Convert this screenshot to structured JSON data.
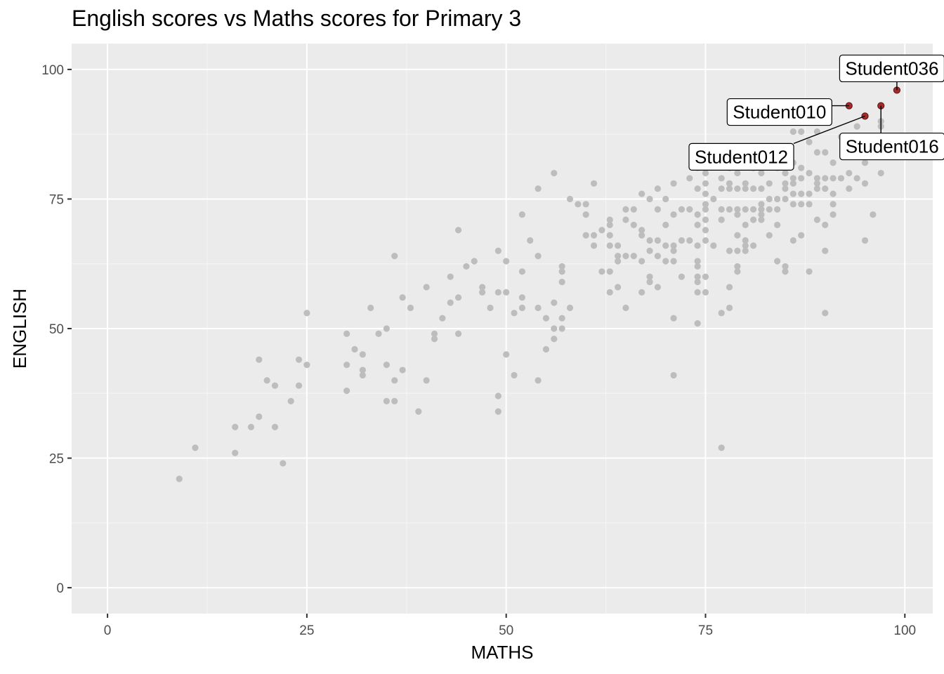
{
  "chart_data": {
    "type": "scatter",
    "title": "English scores vs Maths scores for Primary 3",
    "xlabel": "MATHS",
    "ylabel": "ENGLISH",
    "xlim": [
      -4.5,
      103.5
    ],
    "ylim": [
      -5,
      105
    ],
    "xticks": [
      0,
      25,
      50,
      75,
      100
    ],
    "yticks": [
      0,
      25,
      50,
      75,
      100
    ],
    "grid": true,
    "legend": "none",
    "colors": {
      "panel": "#ebebeb",
      "grid_major": "#ffffff",
      "grid_minor": "#f5f5f5",
      "point": "#bdbdbd",
      "highlight": "#a52a2a",
      "highlight_edge": "#5a1414"
    },
    "series": [
      {
        "role": "all students",
        "points": [
          [
            9,
            21
          ],
          [
            11,
            27
          ],
          [
            16,
            31
          ],
          [
            16,
            26
          ],
          [
            18,
            31
          ],
          [
            19,
            44
          ],
          [
            19,
            33
          ],
          [
            20,
            40
          ],
          [
            21,
            39
          ],
          [
            21,
            31
          ],
          [
            22,
            24
          ],
          [
            23,
            36
          ],
          [
            24,
            44
          ],
          [
            24,
            39
          ],
          [
            25,
            53
          ],
          [
            25,
            43
          ],
          [
            30,
            49
          ],
          [
            30,
            43
          ],
          [
            30,
            38
          ],
          [
            31,
            46
          ],
          [
            32,
            45
          ],
          [
            32,
            42
          ],
          [
            32,
            41
          ],
          [
            33,
            54
          ],
          [
            34,
            49
          ],
          [
            35,
            50
          ],
          [
            35,
            43
          ],
          [
            35,
            36
          ],
          [
            36,
            64
          ],
          [
            36,
            40
          ],
          [
            36,
            36
          ],
          [
            37,
            56
          ],
          [
            37,
            42
          ],
          [
            38,
            54
          ],
          [
            39,
            34
          ],
          [
            40,
            58
          ],
          [
            40,
            40
          ],
          [
            41,
            49
          ],
          [
            41,
            48
          ],
          [
            42,
            52
          ],
          [
            43,
            60
          ],
          [
            43,
            55
          ],
          [
            44,
            69
          ],
          [
            44,
            56
          ],
          [
            44,
            49
          ],
          [
            45,
            62
          ],
          [
            46,
            63
          ],
          [
            47,
            58
          ],
          [
            47,
            57
          ],
          [
            48,
            54
          ],
          [
            49,
            65
          ],
          [
            49,
            57
          ],
          [
            49,
            37
          ],
          [
            49,
            34
          ],
          [
            50,
            63
          ],
          [
            50,
            57
          ],
          [
            50,
            45
          ],
          [
            51,
            53
          ],
          [
            51,
            41
          ],
          [
            52,
            72
          ],
          [
            52,
            61
          ],
          [
            52,
            56
          ],
          [
            52,
            54
          ],
          [
            53,
            67
          ],
          [
            54,
            77
          ],
          [
            54,
            64
          ],
          [
            54,
            54
          ],
          [
            54,
            40
          ],
          [
            55,
            52
          ],
          [
            55,
            46
          ],
          [
            56,
            80
          ],
          [
            56,
            55
          ],
          [
            56,
            50
          ],
          [
            56,
            48
          ],
          [
            57,
            62
          ],
          [
            57,
            61
          ],
          [
            57,
            59
          ],
          [
            57,
            52
          ],
          [
            57,
            50
          ],
          [
            58,
            75
          ],
          [
            58,
            54
          ],
          [
            59,
            74
          ],
          [
            60,
            74
          ],
          [
            60,
            72
          ],
          [
            60,
            68
          ],
          [
            61,
            78
          ],
          [
            61,
            68
          ],
          [
            61,
            66
          ],
          [
            62,
            69
          ],
          [
            62,
            61
          ],
          [
            63,
            71
          ],
          [
            63,
            70
          ],
          [
            63,
            68
          ],
          [
            63,
            66
          ],
          [
            63,
            61
          ],
          [
            63,
            57
          ],
          [
            64,
            66
          ],
          [
            64,
            64
          ],
          [
            64,
            63
          ],
          [
            64,
            58
          ],
          [
            65,
            73
          ],
          [
            65,
            71
          ],
          [
            65,
            64
          ],
          [
            65,
            54
          ],
          [
            66,
            73
          ],
          [
            66,
            70
          ],
          [
            66,
            64
          ],
          [
            67,
            76
          ],
          [
            67,
            69
          ],
          [
            67,
            68
          ],
          [
            67,
            63
          ],
          [
            67,
            57
          ],
          [
            68,
            75
          ],
          [
            68,
            67
          ],
          [
            68,
            65
          ],
          [
            68,
            60
          ],
          [
            68,
            59
          ],
          [
            69,
            77
          ],
          [
            69,
            73
          ],
          [
            69,
            67
          ],
          [
            69,
            64
          ],
          [
            69,
            58
          ],
          [
            70,
            75
          ],
          [
            70,
            70
          ],
          [
            70,
            66
          ],
          [
            70,
            63
          ],
          [
            71,
            78
          ],
          [
            71,
            72
          ],
          [
            71,
            66
          ],
          [
            71,
            65
          ],
          [
            71,
            63
          ],
          [
            71,
            52
          ],
          [
            71,
            41
          ],
          [
            72,
            73
          ],
          [
            72,
            67
          ],
          [
            72,
            60
          ],
          [
            73,
            79
          ],
          [
            73,
            73
          ],
          [
            73,
            67
          ],
          [
            74,
            81
          ],
          [
            74,
            77
          ],
          [
            74,
            72
          ],
          [
            74,
            70
          ],
          [
            74,
            66
          ],
          [
            74,
            63
          ],
          [
            74,
            62
          ],
          [
            74,
            60
          ],
          [
            74,
            59
          ],
          [
            74,
            57
          ],
          [
            74,
            51
          ],
          [
            75,
            80
          ],
          [
            75,
            78
          ],
          [
            75,
            76
          ],
          [
            75,
            74
          ],
          [
            75,
            73
          ],
          [
            75,
            71
          ],
          [
            75,
            69
          ],
          [
            75,
            67
          ],
          [
            75,
            60
          ],
          [
            75,
            57
          ],
          [
            76,
            82
          ],
          [
            76,
            75
          ],
          [
            76,
            66
          ],
          [
            77,
            79
          ],
          [
            77,
            77
          ],
          [
            77,
            73
          ],
          [
            77,
            71
          ],
          [
            77,
            53
          ],
          [
            77,
            27
          ],
          [
            78,
            81
          ],
          [
            78,
            78
          ],
          [
            78,
            77
          ],
          [
            78,
            73
          ],
          [
            78,
            65
          ],
          [
            78,
            58
          ],
          [
            78,
            54
          ],
          [
            79,
            80
          ],
          [
            79,
            77
          ],
          [
            79,
            73
          ],
          [
            79,
            72
          ],
          [
            79,
            68
          ],
          [
            79,
            65
          ],
          [
            79,
            62
          ],
          [
            79,
            61
          ],
          [
            80,
            82
          ],
          [
            80,
            78
          ],
          [
            80,
            77
          ],
          [
            80,
            73
          ],
          [
            80,
            70
          ],
          [
            80,
            67
          ],
          [
            80,
            66
          ],
          [
            80,
            65
          ],
          [
            81,
            81
          ],
          [
            81,
            77
          ],
          [
            81,
            73
          ],
          [
            81,
            71
          ],
          [
            81,
            66
          ],
          [
            82,
            80
          ],
          [
            82,
            77
          ],
          [
            82,
            74
          ],
          [
            82,
            73
          ],
          [
            82,
            72
          ],
          [
            82,
            71
          ],
          [
            83,
            78
          ],
          [
            83,
            75
          ],
          [
            83,
            73
          ],
          [
            83,
            68
          ],
          [
            84,
            81
          ],
          [
            84,
            75
          ],
          [
            84,
            73
          ],
          [
            84,
            70
          ],
          [
            84,
            63
          ],
          [
            85,
            80
          ],
          [
            85,
            78
          ],
          [
            85,
            77
          ],
          [
            85,
            75
          ],
          [
            85,
            62
          ],
          [
            85,
            61
          ],
          [
            86,
            88
          ],
          [
            86,
            82
          ],
          [
            86,
            79
          ],
          [
            86,
            78
          ],
          [
            86,
            76
          ],
          [
            86,
            74
          ],
          [
            86,
            67
          ],
          [
            87,
            88
          ],
          [
            87,
            81
          ],
          [
            87,
            79
          ],
          [
            87,
            76
          ],
          [
            87,
            74
          ],
          [
            87,
            68
          ],
          [
            88,
            86
          ],
          [
            88,
            80
          ],
          [
            88,
            76
          ],
          [
            88,
            74
          ],
          [
            88,
            61
          ],
          [
            89,
            88
          ],
          [
            89,
            84
          ],
          [
            89,
            79
          ],
          [
            89,
            78
          ],
          [
            89,
            77
          ],
          [
            89,
            71
          ],
          [
            90,
            84
          ],
          [
            90,
            79
          ],
          [
            90,
            77
          ],
          [
            90,
            70
          ],
          [
            90,
            65
          ],
          [
            90,
            53
          ],
          [
            91,
            82
          ],
          [
            91,
            79
          ],
          [
            91,
            76
          ],
          [
            91,
            74
          ],
          [
            91,
            72
          ],
          [
            92,
            79
          ],
          [
            92,
            87
          ],
          [
            93,
            80
          ],
          [
            93,
            77
          ],
          [
            94,
            89
          ],
          [
            94,
            79
          ],
          [
            95,
            87
          ],
          [
            95,
            82
          ],
          [
            95,
            78
          ],
          [
            95,
            67
          ],
          [
            96,
            72
          ],
          [
            97,
            90
          ],
          [
            97,
            89
          ],
          [
            97,
            80
          ],
          [
            93,
            93
          ],
          [
            95,
            91
          ],
          [
            97,
            93
          ],
          [
            99,
            96
          ]
        ]
      },
      {
        "role": "highlighted students",
        "points": [
          {
            "x": 93,
            "y": 93,
            "label": "Student010"
          },
          {
            "x": 95,
            "y": 91,
            "label": "Student012"
          },
          {
            "x": 97,
            "y": 93,
            "label": "Student016"
          },
          {
            "x": 99,
            "y": 96,
            "label": "Student036"
          }
        ]
      }
    ]
  }
}
